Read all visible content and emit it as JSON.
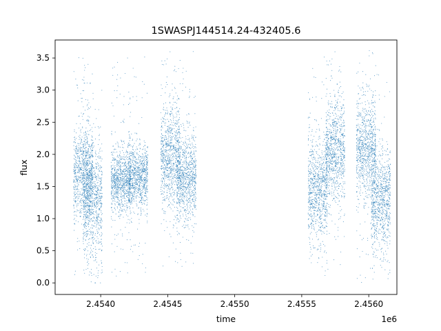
{
  "chart_data": {
    "type": "scatter",
    "title": "1SWASPJ144514.24-432405.6",
    "xlabel": "time",
    "ylabel": "flux",
    "x_offset_label": "1e6",
    "xlim": [
      2.45366,
      2.45621
    ],
    "ylim": [
      -0.18,
      3.78
    ],
    "x_ticks": [
      2.454,
      2.4545,
      2.455,
      2.4555,
      2.456
    ],
    "x_tick_labels": [
      "2.4540",
      "2.4545",
      "2.4550",
      "2.4555",
      "2.4560"
    ],
    "y_ticks": [
      0.0,
      0.5,
      1.0,
      1.5,
      2.0,
      2.5,
      3.0,
      3.5
    ],
    "y_tick_labels": [
      "0.0",
      "0.5",
      "1.0",
      "1.5",
      "2.0",
      "2.5",
      "3.0",
      "3.5"
    ],
    "grid": false,
    "marker_color": "#1f77b4",
    "series": [
      {
        "segments": [
          {
            "x": 2.45387,
            "y": 1.7,
            "spread": 0.35,
            "min": 0.0,
            "max": 3.62
          },
          {
            "x": 2.45394,
            "y": 1.3,
            "spread": 0.45,
            "min": 0.0,
            "max": 3.25
          },
          {
            "x": 2.45415,
            "y": 1.6,
            "spread": 0.25,
            "min": 0.1,
            "max": 3.55
          },
          {
            "x": 2.45428,
            "y": 1.65,
            "spread": 0.25,
            "min": 0.15,
            "max": 3.55
          },
          {
            "x": 2.45452,
            "y": 1.95,
            "spread": 0.4,
            "min": 0.25,
            "max": 3.6
          },
          {
            "x": 2.45464,
            "y": 1.65,
            "spread": 0.35,
            "min": 0.25,
            "max": 3.65
          },
          {
            "x": 2.45562,
            "y": 1.45,
            "spread": 0.4,
            "min": 0.1,
            "max": 3.55
          },
          {
            "x": 2.45575,
            "y": 2.05,
            "spread": 0.4,
            "min": 0.2,
            "max": 3.6
          },
          {
            "x": 2.45598,
            "y": 2.1,
            "spread": 0.4,
            "min": 0.0,
            "max": 3.62
          },
          {
            "x": 2.45609,
            "y": 1.3,
            "spread": 0.4,
            "min": 0.05,
            "max": 3.6
          }
        ],
        "outliers": [
          {
            "x": 2.4547,
            "y": 1.88
          },
          {
            "x": 2.4547,
            "y": 1.8
          },
          {
            "x": 2.4547,
            "y": 1.68
          }
        ]
      }
    ]
  }
}
